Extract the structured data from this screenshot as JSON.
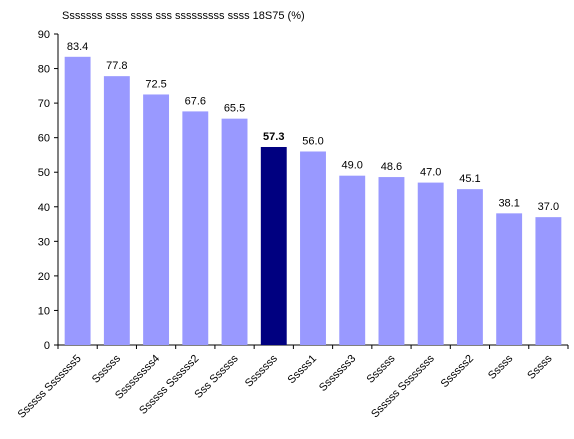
{
  "chart_data": {
    "type": "bar",
    "title": "Sssssss ssss ssss sss sssssssss ssss 18S75 (%)",
    "xlabel": "",
    "ylabel": "",
    "ylim": [
      0,
      90
    ],
    "yticks": [
      0,
      10,
      20,
      30,
      40,
      50,
      60,
      70,
      80,
      90
    ],
    "grid": false,
    "categories": [
      "Ssssss Sssssss5",
      "Ssssss",
      "Sssssssss4",
      "Ssssss Ssssss2",
      "Sss Ssssss",
      "Sssssss",
      "Sssss1",
      "Sssssss3",
      "Ssssss",
      "Ssssss Ssssssss",
      "Ssssss2",
      "Sssss",
      "Sssss"
    ],
    "values": [
      83.4,
      77.8,
      72.5,
      67.6,
      65.5,
      57.3,
      56.0,
      49.0,
      48.6,
      47.0,
      45.1,
      38.1,
      37.0
    ],
    "value_labels": [
      "83.4",
      "77.8",
      "72.5",
      "67.6",
      "65.5",
      "57.3",
      "56.0",
      "49.0",
      "48.6",
      "47.0",
      "45.1",
      "38.1",
      "37.0"
    ],
    "highlight_index": 5,
    "colors": {
      "bar": "#9999ff",
      "highlight": "#000080",
      "axis": "#000000"
    }
  }
}
